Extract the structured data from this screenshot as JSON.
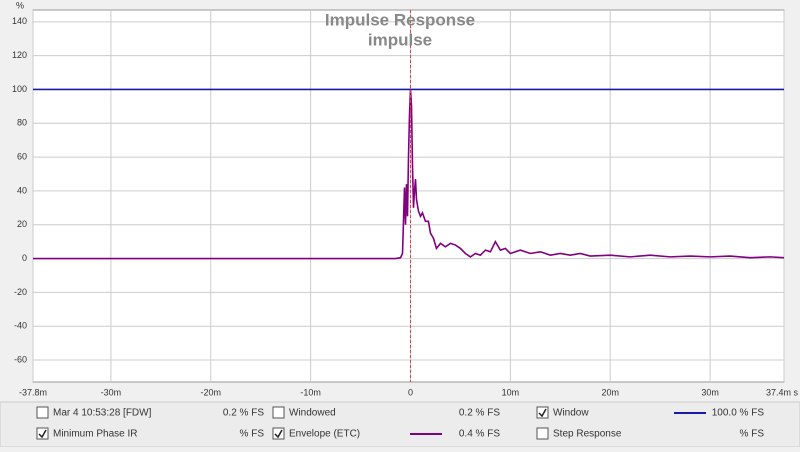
{
  "chart_data": {
    "type": "line",
    "title": "Impulse Response",
    "subtitle": "impulse",
    "y_label": "%",
    "xlim": [
      -37.8,
      37.4
    ],
    "ylim": [
      -73,
      147
    ],
    "xticks": [
      {
        "value": -37.8,
        "label": "-37.8m"
      },
      {
        "value": -30,
        "label": "-30m"
      },
      {
        "value": -20,
        "label": "-20m"
      },
      {
        "value": -10,
        "label": "-10m"
      },
      0,
      {
        "value": 10,
        "label": "10m"
      },
      {
        "value": 20,
        "label": "20m"
      },
      {
        "value": 30,
        "label": "30m"
      },
      {
        "value": 37.4,
        "label": "37.4m s"
      }
    ],
    "yticks": [
      -60,
      -40,
      -20,
      0,
      20,
      40,
      60,
      80,
      100,
      120,
      140
    ],
    "grid": true,
    "marker_x": 0,
    "marker_color": "#e04040",
    "series": [
      {
        "name": "Window",
        "color": "#1a1aa8",
        "readout": "100.0 % FS",
        "checked": true,
        "x": [
          -37.8,
          37.4
        ],
        "values": [
          100,
          100
        ]
      },
      {
        "name": "Envelope (ETC)",
        "color": "#800080",
        "readout": "0.4 % FS",
        "checked": true,
        "x": [
          -37.8,
          -1.5,
          -1.0,
          -0.8,
          -0.6,
          -0.5,
          -0.4,
          -0.3,
          -0.2,
          -0.1,
          0,
          0.1,
          0.2,
          0.3,
          0.4,
          0.5,
          0.6,
          0.8,
          1.0,
          1.2,
          1.5,
          1.8,
          2.0,
          2.3,
          2.6,
          3.0,
          3.5,
          4.0,
          4.5,
          5.0,
          5.5,
          6.0,
          6.5,
          7.0,
          7.5,
          8.0,
          8.5,
          9.0,
          9.5,
          10,
          11,
          12,
          13,
          14,
          15,
          16,
          17,
          18,
          20,
          22,
          24,
          26,
          28,
          30,
          32,
          34,
          36,
          37.4
        ],
        "values": [
          0,
          0,
          0.5,
          3,
          42,
          20,
          44,
          25,
          60,
          85,
          100,
          90,
          55,
          30,
          40,
          47,
          35,
          28,
          25,
          27,
          22,
          22,
          15,
          12,
          6,
          9,
          7,
          9,
          8,
          6,
          3,
          1,
          3,
          2,
          5,
          4,
          10,
          5,
          6,
          3,
          5,
          3,
          4,
          2,
          3,
          2,
          3,
          1.5,
          2,
          1,
          2,
          1,
          1.5,
          1,
          1.5,
          0.5,
          1,
          0.5
        ]
      }
    ],
    "traces": [
      {
        "name": "Mar 4 10:53:28 [FDW]",
        "readout": "0.2 % FS",
        "checked": false,
        "color": "#800040",
        "readout_color": "#d020d0"
      },
      {
        "name": "Windowed",
        "readout": "0.2 % FS",
        "checked": false,
        "color": "#e040e0",
        "readout_color": "#d020d0"
      },
      {
        "name": "Minimum Phase IR",
        "readout": "% FS",
        "checked": true,
        "color": "#a0a0a0",
        "readout_color": "#a0a0a0"
      },
      {
        "name": "Step Response",
        "readout": "% FS",
        "checked": false,
        "color": "#600060",
        "readout_color": "#600060"
      }
    ]
  }
}
